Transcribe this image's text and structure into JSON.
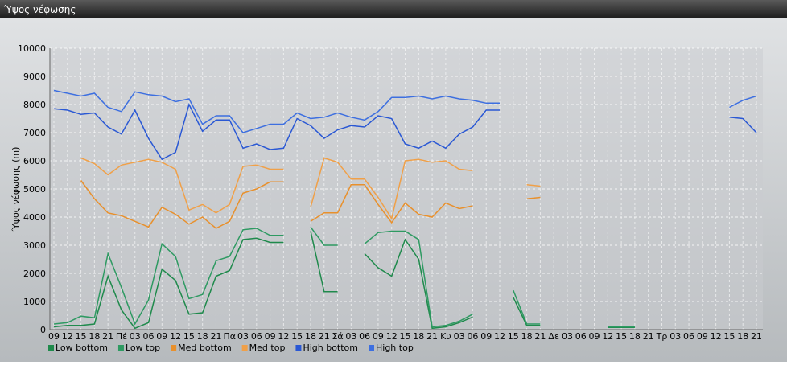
{
  "chart_data": {
    "type": "line",
    "title": "Ύψος νέφωσης",
    "ylabel": "Ύψος νέφωσης (m)",
    "categories": [
      "09",
      "12",
      "15",
      "18",
      "21",
      "Πέ",
      "03",
      "06",
      "09",
      "12",
      "15",
      "18",
      "21",
      "Πα",
      "03",
      "06",
      "09",
      "12",
      "15",
      "18",
      "21",
      "Σά",
      "03",
      "06",
      "09",
      "12",
      "15",
      "18",
      "21",
      "Κυ",
      "03",
      "06",
      "09",
      "12",
      "15",
      "18",
      "21",
      "Δε",
      "03",
      "06",
      "09",
      "12",
      "15",
      "18",
      "21",
      "Τρ",
      "03",
      "06",
      "09",
      "12",
      "15",
      "18",
      "21"
    ],
    "ylim": [
      0,
      10000
    ],
    "yticks": [
      0,
      1000,
      2000,
      3000,
      4000,
      5000,
      6000,
      7000,
      8000,
      9000,
      10000
    ],
    "grid": true,
    "legend": "bottom",
    "series": [
      {
        "name": "Low bottom",
        "color": "#1f8a4c",
        "values": [
          100,
          150,
          150,
          200,
          1900,
          700,
          50,
          250,
          2150,
          1750,
          550,
          600,
          1900,
          2100,
          3200,
          3250,
          3100,
          3100,
          null,
          3500,
          1350,
          1350,
          null,
          2700,
          2200,
          1900,
          3200,
          2500,
          50,
          100,
          250,
          450,
          null,
          null,
          1150,
          150,
          150,
          null,
          null,
          null,
          null,
          80,
          80,
          80,
          null,
          null,
          null,
          null,
          null,
          null,
          null,
          null,
          null
        ]
      },
      {
        "name": "Low top",
        "color": "#2e9a62",
        "values": [
          200,
          250,
          480,
          420,
          2700,
          1500,
          200,
          1050,
          3050,
          2600,
          1100,
          1250,
          2450,
          2600,
          3550,
          3600,
          3350,
          3350,
          null,
          3650,
          3000,
          3000,
          null,
          3050,
          3450,
          3500,
          3500,
          3200,
          100,
          150,
          300,
          550,
          null,
          null,
          1400,
          200,
          200,
          null,
          null,
          null,
          null,
          100,
          100,
          100,
          null,
          null,
          null,
          null,
          null,
          null,
          null,
          null,
          null
        ]
      },
      {
        "name": "Med bottom",
        "color": "#e8902c",
        "values": [
          null,
          null,
          5300,
          4650,
          4150,
          4050,
          3850,
          3650,
          4350,
          4100,
          3750,
          4000,
          3600,
          3850,
          4850,
          5000,
          5250,
          5250,
          null,
          3850,
          4150,
          4150,
          5150,
          5150,
          4450,
          3800,
          4500,
          4100,
          4000,
          4500,
          4300,
          4400,
          null,
          null,
          null,
          4650,
          4700,
          null,
          null,
          null,
          null,
          null,
          null,
          null,
          null,
          null,
          null,
          null,
          null,
          null,
          null,
          null,
          null
        ]
      },
      {
        "name": "Med top",
        "color": "#f0a048",
        "values": [
          null,
          null,
          6100,
          5900,
          5500,
          5850,
          5950,
          6050,
          5950,
          5700,
          4250,
          4450,
          4150,
          4450,
          5800,
          5850,
          5700,
          5700,
          null,
          4350,
          6100,
          5950,
          5350,
          5350,
          4700,
          3950,
          6000,
          6050,
          5950,
          6000,
          5700,
          5650,
          null,
          null,
          null,
          5150,
          5100,
          null,
          null,
          null,
          null,
          null,
          null,
          null,
          null,
          null,
          null,
          null,
          null,
          null,
          null,
          null,
          null
        ]
      },
      {
        "name": "High bottom",
        "color": "#2a58d4",
        "values": [
          7850,
          7800,
          7650,
          7700,
          7200,
          6950,
          7800,
          6800,
          6050,
          6300,
          8000,
          7050,
          7450,
          7450,
          6450,
          6600,
          6400,
          6450,
          7500,
          7250,
          6800,
          7100,
          7250,
          7200,
          7600,
          7500,
          6600,
          6450,
          6700,
          6450,
          6950,
          7200,
          7800,
          7800,
          null,
          null,
          null,
          null,
          null,
          null,
          null,
          null,
          null,
          null,
          null,
          null,
          null,
          null,
          null,
          null,
          7550,
          7500,
          7000
        ]
      },
      {
        "name": "High top",
        "color": "#3d6fe0",
        "values": [
          8500,
          8400,
          8300,
          8400,
          7900,
          7750,
          8450,
          8350,
          8300,
          8100,
          8200,
          7300,
          7600,
          7600,
          7000,
          7150,
          7300,
          7300,
          7700,
          7500,
          7550,
          7700,
          7550,
          7450,
          7750,
          8250,
          8250,
          8300,
          8200,
          8300,
          8200,
          8150,
          8050,
          8050,
          null,
          null,
          null,
          null,
          null,
          null,
          null,
          null,
          null,
          null,
          null,
          null,
          null,
          null,
          null,
          null,
          7900,
          8150,
          8300
        ]
      }
    ]
  }
}
